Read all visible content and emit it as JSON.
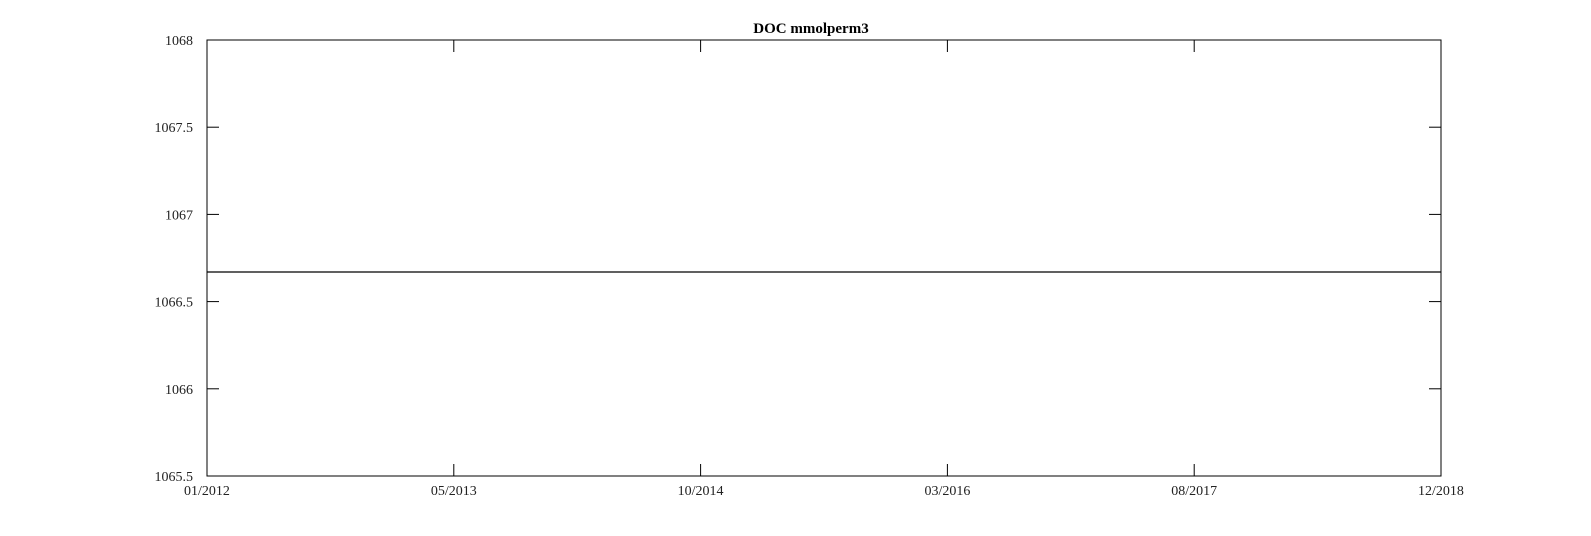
{
  "chart_data": {
    "type": "line",
    "title": "DOC mmolperm3",
    "xlabel": "",
    "ylabel": "",
    "x_tick_labels": [
      "01/2012",
      "05/2013",
      "10/2014",
      "03/2016",
      "08/2017",
      "12/2018"
    ],
    "y_tick_labels": [
      "1068",
      "1067.5",
      "1067",
      "1066.5",
      "1066",
      "1065.5"
    ],
    "xlim": [
      "2012-01",
      "2018-12"
    ],
    "ylim": [
      1065.5,
      1068
    ],
    "grid": false,
    "series": [
      {
        "x": [
          "2012-01",
          "2018-12"
        ],
        "values": [
          1066.67,
          1066.67
        ],
        "color": "#000000"
      }
    ]
  }
}
